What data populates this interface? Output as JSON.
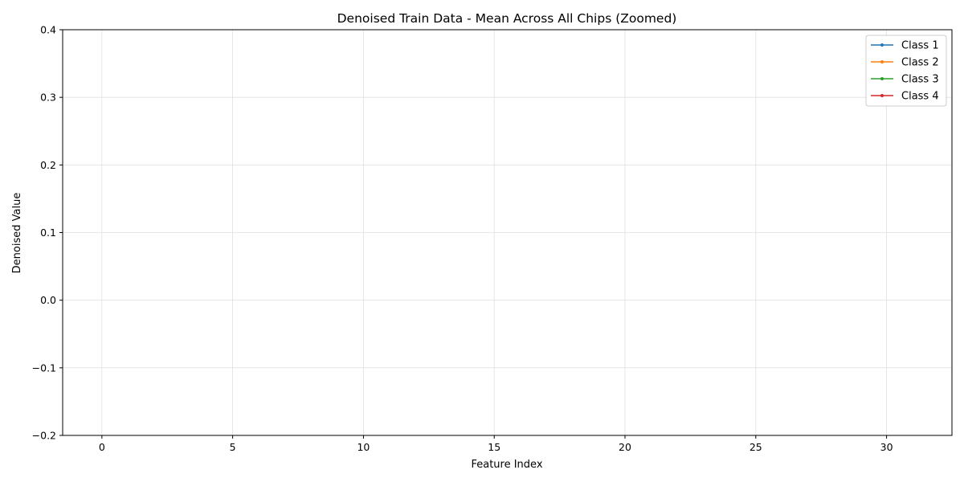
{
  "chart_data": {
    "type": "line",
    "title": "Denoised Train Data - Mean Across All Chips (Zoomed)",
    "xlabel": "Feature Index",
    "ylabel": "Denoised Value",
    "xlim": [
      -1.5,
      32.5
    ],
    "ylim": [
      -0.2,
      0.4
    ],
    "xticks": [
      0,
      5,
      10,
      15,
      20,
      25,
      30
    ],
    "yticks": [
      -0.2,
      -0.1,
      0.0,
      0.1,
      0.2,
      0.3,
      0.4
    ],
    "ytick_labels": [
      "−0.2",
      "−0.1",
      "0.0",
      "0.1",
      "0.2",
      "0.3",
      "0.4"
    ],
    "xtick_labels": [
      "0",
      "5",
      "10",
      "15",
      "20",
      "25",
      "30"
    ],
    "grid": true,
    "legend_position": "top-right",
    "series": [
      {
        "name": "Class 1",
        "color": "#1f77b4",
        "values": []
      },
      {
        "name": "Class 2",
        "color": "#ff7f0e",
        "values": []
      },
      {
        "name": "Class 3",
        "color": "#2ca02c",
        "values": []
      },
      {
        "name": "Class 4",
        "color": "#d62728",
        "values": []
      }
    ]
  }
}
